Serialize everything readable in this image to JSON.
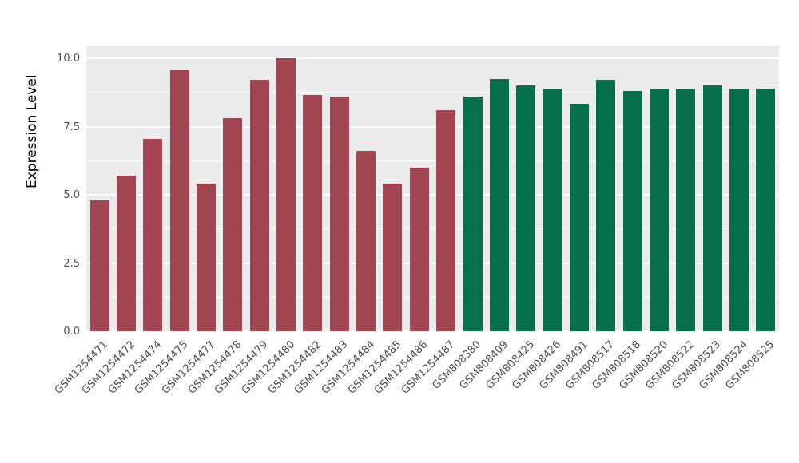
{
  "chart_data": {
    "type": "bar",
    "title": "",
    "xlabel": "",
    "ylabel": "Expression Level",
    "ylim": [
      0,
      10.47
    ],
    "grid": "on",
    "legend": "none",
    "panel_background": "#EBEBEB",
    "gridline_color": "#FFFFFF",
    "categories": [
      "GSM1254471",
      "GSM1254472",
      "GSM1254474",
      "GSM1254475",
      "GSM1254477",
      "GSM1254478",
      "GSM1254479",
      "GSM1254480",
      "GSM1254482",
      "GSM1254483",
      "GSM1254484",
      "GSM1254485",
      "GSM1254486",
      "GSM1254487",
      "GSM808380",
      "GSM808409",
      "GSM808425",
      "GSM808426",
      "GSM808491",
      "GSM808517",
      "GSM808518",
      "GSM808520",
      "GSM808522",
      "GSM808523",
      "GSM808524",
      "GSM808525"
    ],
    "values": [
      4.8,
      5.7,
      7.05,
      9.55,
      5.4,
      7.8,
      9.2,
      10.0,
      8.65,
      8.6,
      6.6,
      5.4,
      6.0,
      8.1,
      8.6,
      9.25,
      9.0,
      8.85,
      8.35,
      9.2,
      8.8,
      8.85,
      8.85,
      9.0,
      8.85,
      8.9
    ],
    "bar_colors": {
      "group1": "#A04551",
      "group2": "#05704B"
    },
    "group_split_index": 14,
    "y_major_ticks": [
      {
        "label": "0.0",
        "value": 0
      },
      {
        "label": "2.5",
        "value": 2.5
      },
      {
        "label": "5.0",
        "value": 5
      },
      {
        "label": "7.5",
        "value": 7.5
      },
      {
        "label": "10.0",
        "value": 10
      }
    ],
    "y_minor_ticks": [
      1.25,
      3.75,
      6.25,
      8.75
    ]
  }
}
